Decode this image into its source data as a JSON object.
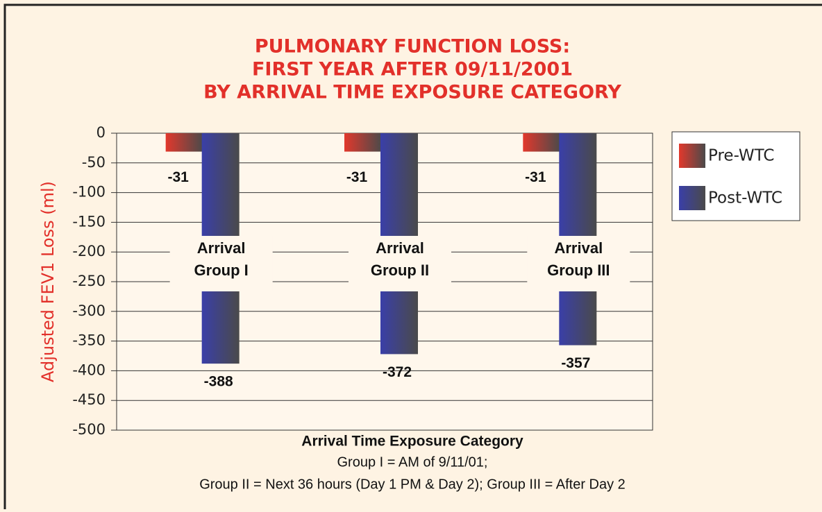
{
  "chart_data": {
    "type": "bar",
    "title": [
      "PULMONARY FUNCTION LOSS:",
      "FIRST YEAR AFTER 09/11/2001",
      "BY ARRIVAL TIME EXPOSURE CATEGORY"
    ],
    "ylabel": "Adjusted FEV1 Loss (ml)",
    "xlabel": "Arrival Time Exposure Category",
    "notes": [
      "Group I = AM of 9/11/01;",
      "Group II = Next 36 hours (Day 1 PM & Day 2); Group III = After Day 2"
    ],
    "categories": [
      [
        "Arrival",
        "Group I"
      ],
      [
        "Arrival",
        "Group II"
      ],
      [
        "Arrival",
        "Group III"
      ]
    ],
    "series": [
      {
        "name": "Pre-WTC",
        "color": "#e2382c",
        "values": [
          -31,
          -31,
          -31
        ]
      },
      {
        "name": "Post-WTC",
        "color": "#3a3fa8",
        "values": [
          -388,
          -372,
          -357
        ]
      }
    ],
    "ylim": [
      -500,
      0
    ],
    "yticks": [
      0,
      -50,
      -100,
      -150,
      -200,
      -250,
      -300,
      -350,
      -400,
      -450,
      -500
    ],
    "grid": true,
    "legend": "right"
  }
}
